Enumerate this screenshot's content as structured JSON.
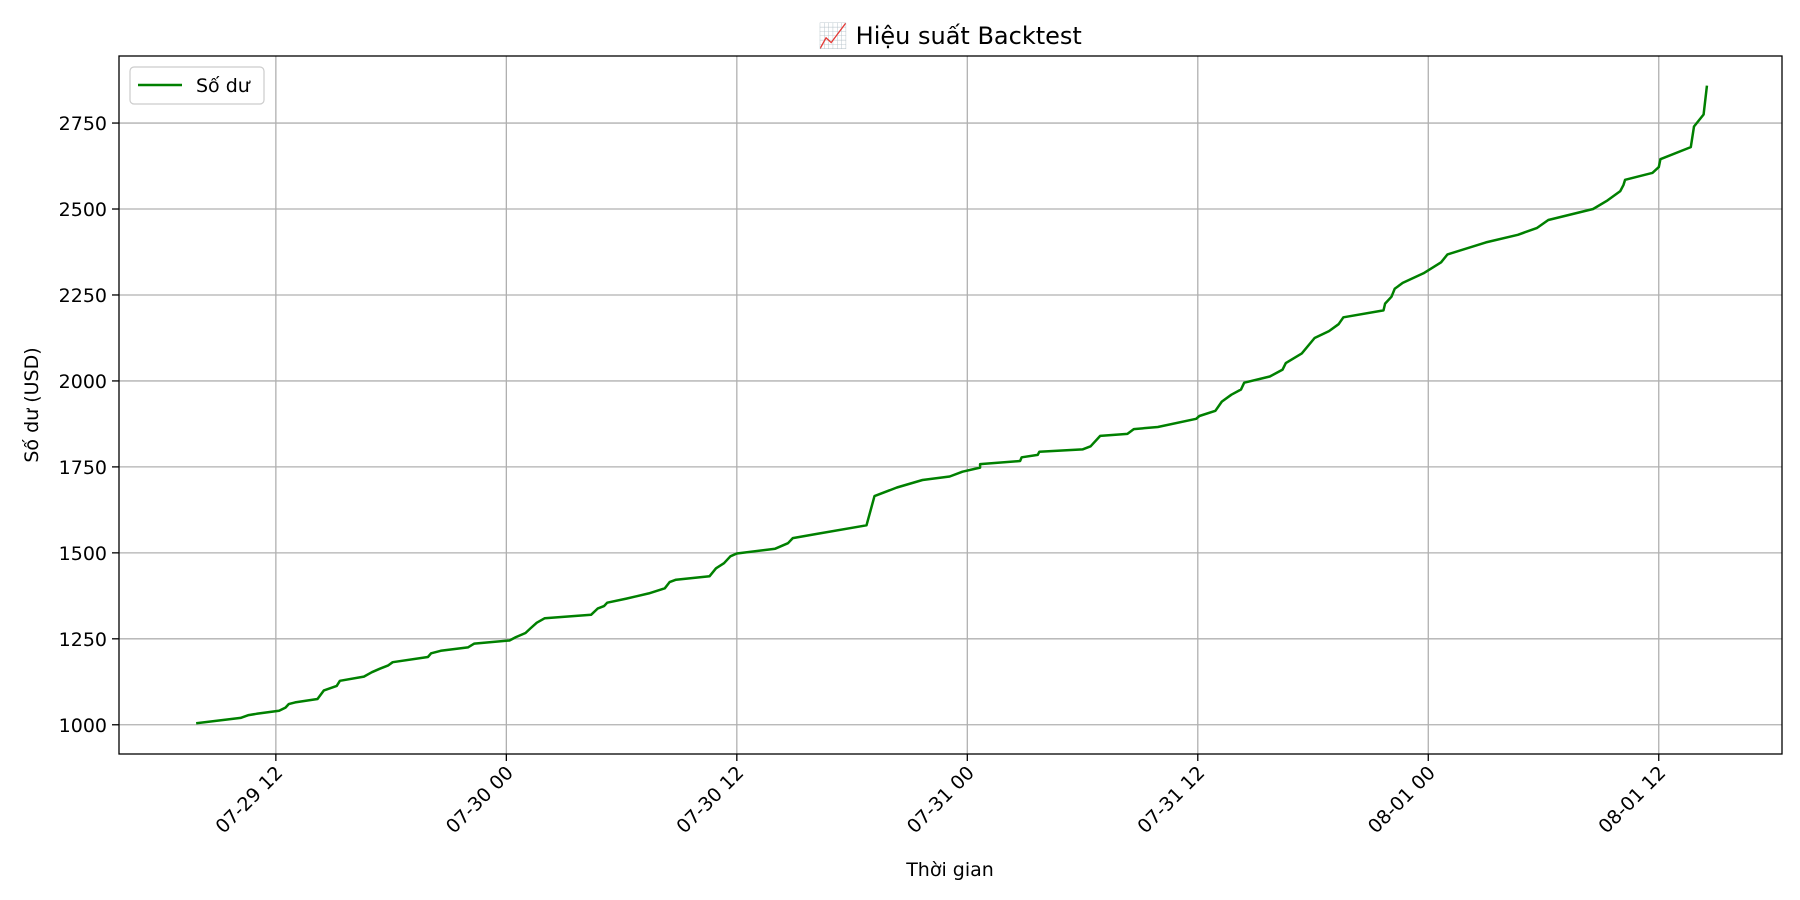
{
  "chart_data": {
    "type": "line",
    "title": "📈 Hiệu suất Backtest",
    "xlabel": "Thời gian",
    "ylabel": "Số dư (USD)",
    "x_unit": "datetime",
    "x_ticks": [
      "07-29 12",
      "07-30 00",
      "07-30 12",
      "07-31 00",
      "07-31 12",
      "08-01 00",
      "08-01 12"
    ],
    "y_ticks": [
      1000,
      1250,
      1500,
      1750,
      2000,
      2250,
      2500,
      2750
    ],
    "xlim": [
      "2025-07-29 03:50",
      "2025-08-01 18:25"
    ],
    "ylim": [
      915,
      2945
    ],
    "grid": true,
    "legend": {
      "position": "top-left",
      "entries": [
        "Số dư"
      ]
    },
    "series": [
      {
        "name": "Số dư",
        "color": "#008000",
        "points": [
          [
            "2025-07-29 07:55",
            1005
          ],
          [
            "2025-07-29 10:10",
            1020
          ],
          [
            "2025-07-29 10:35",
            1028
          ],
          [
            "2025-07-29 11:00",
            1032
          ],
          [
            "2025-07-29 12:10",
            1041
          ],
          [
            "2025-07-29 12:30",
            1050
          ],
          [
            "2025-07-29 12:40",
            1060
          ],
          [
            "2025-07-29 13:00",
            1065
          ],
          [
            "2025-07-29 14:10",
            1075
          ],
          [
            "2025-07-29 14:30",
            1100
          ],
          [
            "2025-07-29 15:10",
            1113
          ],
          [
            "2025-07-29 15:20",
            1128
          ],
          [
            "2025-07-29 16:35",
            1140
          ],
          [
            "2025-07-29 17:00",
            1153
          ],
          [
            "2025-07-29 17:25",
            1163
          ],
          [
            "2025-07-29 17:50",
            1172
          ],
          [
            "2025-07-29 18:05",
            1182
          ],
          [
            "2025-07-29 19:55",
            1197
          ],
          [
            "2025-07-29 20:05",
            1208
          ],
          [
            "2025-07-29 20:35",
            1215
          ],
          [
            "2025-07-29 22:00",
            1225
          ],
          [
            "2025-07-29 22:20",
            1236
          ],
          [
            "2025-07-30 00:10",
            1245
          ],
          [
            "2025-07-30 00:30",
            1255
          ],
          [
            "2025-07-30 01:00",
            1267
          ],
          [
            "2025-07-30 01:15",
            1280
          ],
          [
            "2025-07-30 01:35",
            1297
          ],
          [
            "2025-07-30 02:00",
            1310
          ],
          [
            "2025-07-30 04:25",
            1320
          ],
          [
            "2025-07-30 04:45",
            1338
          ],
          [
            "2025-07-30 05:05",
            1345
          ],
          [
            "2025-07-30 05:15",
            1355
          ],
          [
            "2025-07-30 06:15",
            1367
          ],
          [
            "2025-07-30 07:25",
            1382
          ],
          [
            "2025-07-30 08:15",
            1397
          ],
          [
            "2025-07-30 08:30",
            1415
          ],
          [
            "2025-07-30 08:50",
            1422
          ],
          [
            "2025-07-30 10:35",
            1432
          ],
          [
            "2025-07-30 10:55",
            1455
          ],
          [
            "2025-07-30 11:20",
            1470
          ],
          [
            "2025-07-30 11:40",
            1490
          ],
          [
            "2025-07-30 12:00",
            1498
          ],
          [
            "2025-07-30 14:00",
            1512
          ],
          [
            "2025-07-30 14:40",
            1528
          ],
          [
            "2025-07-30 14:55",
            1543
          ],
          [
            "2025-07-30 16:10",
            1555
          ],
          [
            "2025-07-30 18:45",
            1580
          ],
          [
            "2025-07-30 19:10",
            1665
          ],
          [
            "2025-07-30 20:20",
            1690
          ],
          [
            "2025-07-30 21:40",
            1712
          ],
          [
            "2025-07-30 23:05",
            1722
          ],
          [
            "2025-07-30 23:45",
            1736
          ],
          [
            "2025-07-31 00:40",
            1748
          ],
          [
            "2025-07-31 00:40",
            1758
          ],
          [
            "2025-07-31 02:45",
            1767
          ],
          [
            "2025-07-31 02:50",
            1778
          ],
          [
            "2025-07-31 03:40",
            1785
          ],
          [
            "2025-07-31 03:45",
            1794
          ],
          [
            "2025-07-31 06:00",
            1801
          ],
          [
            "2025-07-31 06:25",
            1810
          ],
          [
            "2025-07-31 06:55",
            1840
          ],
          [
            "2025-07-31 08:20",
            1846
          ],
          [
            "2025-07-31 08:40",
            1860
          ],
          [
            "2025-07-31 09:55",
            1866
          ],
          [
            "2025-07-31 11:55",
            1890
          ],
          [
            "2025-07-31 12:05",
            1898
          ],
          [
            "2025-07-31 12:55",
            1913
          ],
          [
            "2025-07-31 13:15",
            1940
          ],
          [
            "2025-07-31 13:45",
            1960
          ],
          [
            "2025-07-31 14:15",
            1975
          ],
          [
            "2025-07-31 14:25",
            1995
          ],
          [
            "2025-07-31 15:45",
            2013
          ],
          [
            "2025-07-31 16:25",
            2033
          ],
          [
            "2025-07-31 16:35",
            2052
          ],
          [
            "2025-07-31 17:25",
            2080
          ],
          [
            "2025-07-31 18:05",
            2125
          ],
          [
            "2025-07-31 18:50",
            2145
          ],
          [
            "2025-07-31 19:20",
            2165
          ],
          [
            "2025-07-31 19:35",
            2185
          ],
          [
            "2025-07-31 21:40",
            2205
          ],
          [
            "2025-07-31 21:45",
            2225
          ],
          [
            "2025-07-31 22:05",
            2245
          ],
          [
            "2025-07-31 22:15",
            2268
          ],
          [
            "2025-07-31 22:40",
            2285
          ],
          [
            "2025-07-31 23:45",
            2313
          ],
          [
            "2025-08-01 00:40",
            2345
          ],
          [
            "2025-08-01 01:00",
            2368
          ],
          [
            "2025-08-01 03:00",
            2403
          ],
          [
            "2025-08-01 04:40",
            2425
          ],
          [
            "2025-08-01 05:40",
            2445
          ],
          [
            "2025-08-01 06:15",
            2468
          ],
          [
            "2025-08-01 08:35",
            2500
          ],
          [
            "2025-08-01 09:20",
            2525
          ],
          [
            "2025-08-01 10:00",
            2552
          ],
          [
            "2025-08-01 10:10",
            2570
          ],
          [
            "2025-08-01 10:15",
            2585
          ],
          [
            "2025-08-01 11:40",
            2605
          ],
          [
            "2025-08-01 12:00",
            2622
          ],
          [
            "2025-08-01 12:05",
            2645
          ],
          [
            "2025-08-01 13:40",
            2680
          ],
          [
            "2025-08-01 13:50",
            2740
          ],
          [
            "2025-08-01 14:20",
            2775
          ],
          [
            "2025-08-01 14:30",
            2855
          ]
        ]
      }
    ]
  }
}
